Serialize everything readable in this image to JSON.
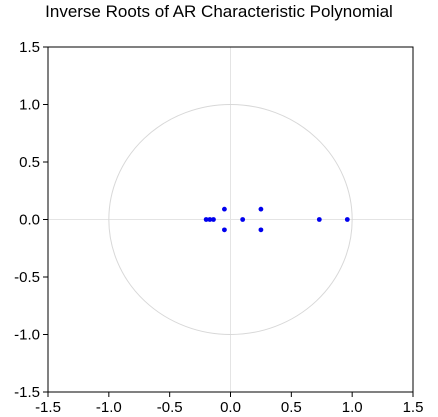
{
  "chart_data": {
    "type": "scatter",
    "title": "Inverse Roots of AR Characteristic Polynomial",
    "xlabel": "",
    "ylabel": "",
    "xlim": [
      -1.5,
      1.5
    ],
    "ylim": [
      -1.5,
      1.5
    ],
    "x_ticks": [
      -1.5,
      -1.0,
      -0.5,
      0.0,
      0.5,
      1.0,
      1.5
    ],
    "y_ticks": [
      -1.5,
      -1.0,
      -0.5,
      0.0,
      0.5,
      1.0,
      1.5
    ],
    "x_tick_labels": [
      "-1.5",
      "-1.0",
      "-0.5",
      "0.0",
      "0.5",
      "1.0",
      "1.5"
    ],
    "y_tick_labels": [
      "-1.5",
      "-1.0",
      "-0.5",
      "0.0",
      "0.5",
      "1.0",
      "1.5"
    ],
    "unit_circle": true,
    "zero_lines": true,
    "grid": false,
    "legend": "none",
    "points": [
      {
        "x": -0.2,
        "y": 0.0
      },
      {
        "x": -0.17,
        "y": 0.0
      },
      {
        "x": -0.14,
        "y": 0.0
      },
      {
        "x": -0.05,
        "y": 0.09
      },
      {
        "x": -0.05,
        "y": -0.09
      },
      {
        "x": 0.1,
        "y": 0.0
      },
      {
        "x": 0.25,
        "y": 0.09
      },
      {
        "x": 0.25,
        "y": -0.09
      },
      {
        "x": 0.73,
        "y": 0.0
      },
      {
        "x": 0.96,
        "y": 0.0
      }
    ],
    "colors": {
      "points": "#0000ee",
      "circle": "#d8d8d8",
      "zero_lines": "#e4e4e4",
      "frame": "#000000"
    }
  }
}
